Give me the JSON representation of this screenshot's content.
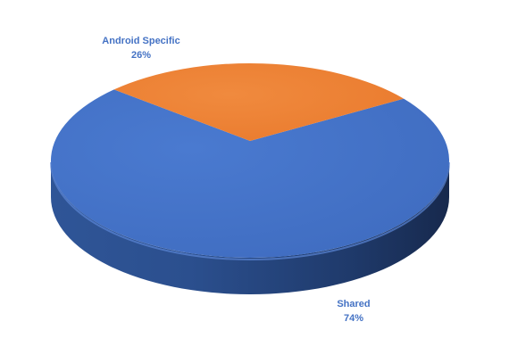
{
  "chart_data": {
    "type": "pie",
    "style": "3d",
    "slices": [
      {
        "name": "Shared",
        "value": 74,
        "value_label": "74%",
        "color": "#4472C4"
      },
      {
        "name": "Android Specific",
        "value": 26,
        "value_label": "26%",
        "color": "#ED7D31"
      }
    ],
    "legend": "none",
    "data_labels": "category name and percentage",
    "label_color": "#4472C4"
  }
}
